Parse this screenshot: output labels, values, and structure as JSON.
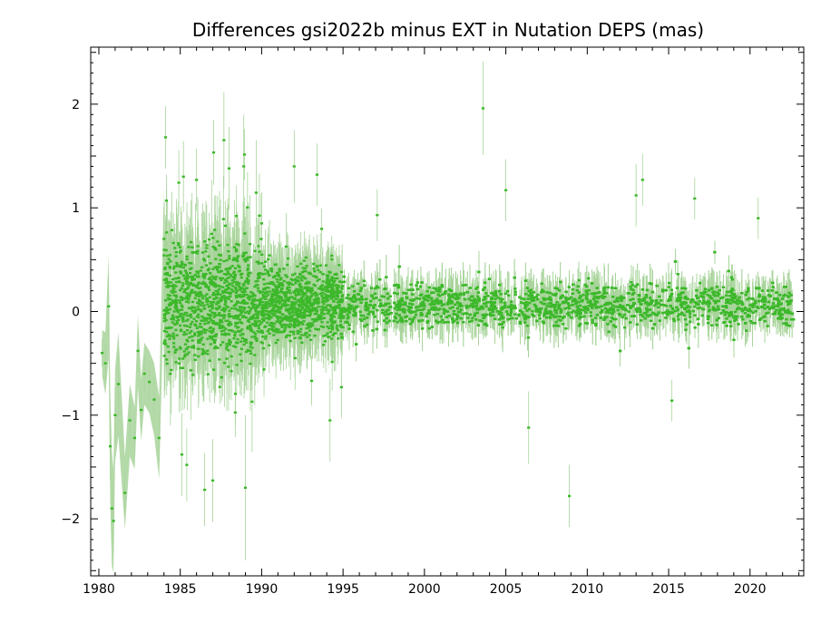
{
  "chart_data": {
    "type": "scatter",
    "title": "Differences gsi2022b minus EXT in Nutation DEPS (mas)",
    "xlabel": "",
    "ylabel": "",
    "xlim": [
      1979.5,
      2023.3
    ],
    "ylim": [
      -2.55,
      2.55
    ],
    "x_ticks": [
      1980,
      1985,
      1990,
      1995,
      2000,
      2005,
      2010,
      2015,
      2020
    ],
    "y_ticks": [
      -2,
      -1,
      0,
      1,
      2
    ],
    "x_tick_labels": [
      "1980",
      "1985",
      "1990",
      "1995",
      "2000",
      "2005",
      "2010",
      "2015",
      "2020"
    ],
    "y_tick_labels": [
      "−2",
      "−1",
      "0",
      "1",
      "2"
    ],
    "grid": false,
    "colors": {
      "point": "#3cb82a",
      "error_bar": "#a8d49b",
      "frame": "#000000"
    },
    "early_series": {
      "x": [
        1980.2,
        1980.4,
        1980.6,
        1980.7,
        1980.8,
        1980.9,
        1981.0,
        1981.2,
        1981.6,
        1981.9,
        1982.2,
        1982.4,
        1982.6,
        1982.8,
        1983.1,
        1983.4,
        1983.7,
        1984.0
      ],
      "y": [
        -0.4,
        -0.5,
        0.05,
        -1.3,
        -1.9,
        -2.02,
        -1.0,
        -0.7,
        -1.75,
        -1.05,
        -1.22,
        -0.38,
        -0.95,
        -0.6,
        -0.68,
        -0.85,
        -1.22,
        0.7
      ],
      "err": [
        0.22,
        0.3,
        0.5,
        0.55,
        0.55,
        0.5,
        0.45,
        0.5,
        0.35,
        0.35,
        0.3,
        0.35,
        0.3,
        0.3,
        0.3,
        0.35,
        0.4,
        0.5
      ]
    },
    "outliers": {
      "x": [
        1984.1,
        1984.15,
        1985.1,
        1985.4,
        1986.0,
        1986.5,
        1987.0,
        1988.0,
        1988.9,
        1989.0,
        1990.0,
        1992.0,
        1993.4,
        1994.2,
        1994.9,
        1997.1,
        2003.6,
        2005.0,
        2008.9,
        2006.4,
        2013.0,
        2013.4,
        2015.2,
        2016.6,
        2020.5
      ],
      "y": [
        1.68,
        1.07,
        -1.38,
        -1.48,
        1.27,
        -1.72,
        -1.63,
        1.38,
        1.4,
        -1.7,
        0.85,
        1.4,
        1.32,
        -1.05,
        -0.73,
        0.93,
        1.96,
        1.17,
        -1.78,
        -1.12,
        1.12,
        1.27,
        -0.86,
        1.09,
        0.9
      ],
      "err": [
        0.3,
        0.25,
        0.4,
        0.35,
        0.3,
        0.35,
        0.4,
        0.4,
        0.5,
        0.7,
        0.3,
        0.35,
        0.3,
        0.4,
        0.3,
        0.25,
        0.45,
        0.3,
        0.3,
        0.35,
        0.3,
        0.25,
        0.2,
        0.2,
        0.2
      ]
    },
    "sampling": {
      "comment_free": true,
      "segments": [
        {
          "from": 1984.0,
          "to": 1990.0,
          "per_year": 180,
          "mean": 0.08,
          "spread": 0.28,
          "err_spread": 0.45
        },
        {
          "from": 1990.0,
          "to": 1995.0,
          "per_year": 190,
          "mean": 0.08,
          "spread": 0.17,
          "err_spread": 0.32
        },
        {
          "from": 1995.0,
          "to": 2022.7,
          "per_year": 160,
          "mean": 0.06,
          "spread": 0.1,
          "err_spread": 0.2
        }
      ]
    }
  }
}
